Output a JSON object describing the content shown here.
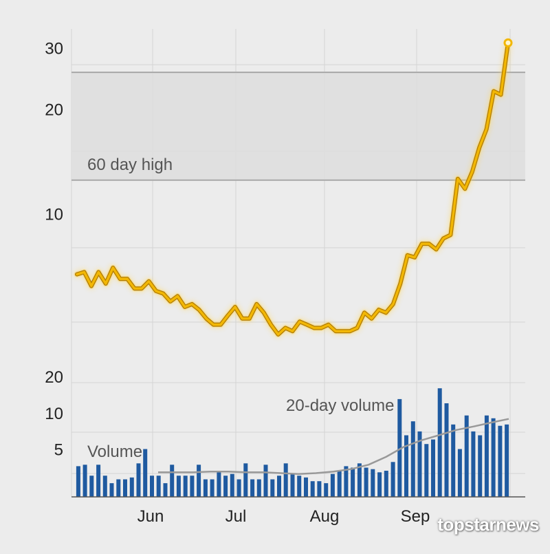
{
  "watermark": "topstarnews",
  "colors": {
    "background": "#ececec",
    "price_line": "#f2b705",
    "price_glow": "#ffd34d",
    "volume_bars": "#1f5aa0",
    "volume_avg": "#999999",
    "band_fill": "#dedede",
    "band_border": "#a8a8a8",
    "grid": "#d4d4d4"
  },
  "chart_data": [
    {
      "type": "line",
      "scale": "log",
      "ylim": [
        3.6,
        34
      ],
      "yticks": [
        10,
        20,
        30
      ],
      "band": {
        "label": "60 day high",
        "from": 12.5,
        "to": 25.5
      },
      "xticks": [
        "Jun",
        "Jul",
        "Aug",
        "Sep"
      ],
      "values": [
        6.7,
        6.8,
        6.2,
        6.8,
        6.3,
        7.0,
        6.5,
        6.5,
        6.1,
        6.1,
        6.4,
        6.0,
        5.9,
        5.6,
        5.8,
        5.4,
        5.5,
        5.3,
        5.0,
        4.8,
        4.8,
        5.1,
        5.4,
        5.0,
        5.0,
        5.5,
        5.2,
        4.8,
        4.5,
        4.7,
        4.6,
        4.9,
        4.8,
        4.7,
        4.7,
        4.8,
        4.6,
        4.6,
        4.6,
        4.7,
        5.2,
        5.0,
        5.3,
        5.2,
        5.5,
        6.3,
        7.6,
        7.5,
        8.2,
        8.2,
        7.9,
        8.5,
        8.7,
        12.6,
        11.8,
        13.2,
        15.5,
        17.5,
        22.5,
        22.0,
        31.0
      ]
    },
    {
      "type": "bar",
      "title": "Volume",
      "average_label": "20-day volume",
      "ylim": [
        2,
        22
      ],
      "yticks": [
        5,
        10,
        20
      ],
      "values": [
        3.6,
        3.7,
        3.0,
        3.7,
        3.0,
        2.6,
        2.8,
        2.8,
        2.9,
        3.8,
        5.0,
        3.0,
        3.0,
        2.6,
        3.7,
        3.0,
        3.0,
        3.0,
        3.7,
        2.8,
        2.8,
        3.3,
        3.0,
        3.1,
        2.8,
        3.8,
        2.8,
        2.8,
        3.7,
        2.8,
        3.0,
        3.8,
        3.1,
        3.0,
        2.9,
        2.7,
        2.7,
        2.6,
        3.1,
        3.3,
        3.6,
        3.5,
        3.8,
        3.5,
        3.4,
        3.2,
        3.3,
        3.9,
        13.0,
        6.5,
        8.5,
        7.0,
        5.5,
        6.0,
        16.0,
        12.0,
        8.0,
        5.0,
        9.5,
        7.0,
        6.5,
        9.5,
        9.0,
        7.8,
        8.0
      ],
      "average": [
        3.2,
        3.2,
        3.2,
        3.25,
        3.25,
        3.2,
        3.2,
        3.15,
        3.1,
        3.15,
        3.25,
        3.4,
        3.7,
        4.3,
        5.2,
        5.9,
        6.5,
        7.2,
        7.7,
        8.3,
        8.9
      ]
    }
  ]
}
